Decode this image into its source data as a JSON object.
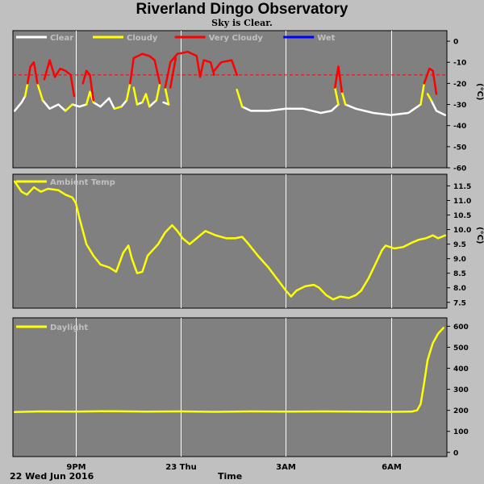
{
  "header": {
    "title": "Riverland Dingo Observatory",
    "subtitle": "Sky is Clear."
  },
  "footer": {
    "date_label": "22 Wed Jun 2016",
    "xlabel": "Time"
  },
  "colors": {
    "plot_bg": "#808080",
    "page_bg": "#c0c0c0",
    "grid": "#ffffff",
    "clear": "#ffffff",
    "cloudy": "#ffff00",
    "very_cloudy": "#ff0000",
    "wet": "#0000ff",
    "threshold": "#ff0000"
  },
  "chart_data": [
    {
      "type": "line",
      "panel": "sky",
      "legend": [
        {
          "name": "Clear",
          "color": "#ffffff"
        },
        {
          "name": "Cloudy",
          "color": "#ffff00"
        },
        {
          "name": "Very Cloudy",
          "color": "#ff0000"
        },
        {
          "name": "Wet",
          "color": "#0000ff"
        }
      ],
      "ylabel": "(°C)",
      "ylim": [
        -60,
        5
      ],
      "yticks": [
        0,
        -10,
        -20,
        -30,
        -40,
        -50,
        -60
      ],
      "threshold": -16,
      "xticks": [
        {
          "label": "9PM",
          "x": 21
        },
        {
          "label": "23 Thu",
          "x": 24
        },
        {
          "label": "3AM",
          "x": 27
        },
        {
          "label": "6AM",
          "x": 30
        }
      ],
      "xlim": [
        19.2,
        31.6
      ],
      "series": [
        {
          "name": "Clear",
          "segments": [
            [
              [
                19.25,
                -33
              ],
              [
                19.45,
                -29
              ],
              [
                19.55,
                -26
              ]
            ],
            [
              [
                20.05,
                -28
              ],
              [
                20.25,
                -32
              ],
              [
                20.5,
                -30
              ],
              [
                20.7,
                -33
              ]
            ],
            [
              [
                20.9,
                -30
              ],
              [
                21.1,
                -31
              ],
              [
                21.3,
                -30
              ]
            ],
            [
              [
                21.5,
                -29
              ],
              [
                21.7,
                -31
              ],
              [
                21.95,
                -27
              ],
              [
                22.1,
                -32
              ]
            ],
            [
              [
                22.3,
                -31
              ],
              [
                22.45,
                -28
              ]
            ],
            [
              [
                22.75,
                -30
              ],
              [
                22.9,
                -29
              ]
            ],
            [
              [
                23.1,
                -31
              ],
              [
                23.3,
                -28
              ]
            ],
            [
              [
                23.5,
                -29
              ],
              [
                23.65,
                -30
              ]
            ],
            [
              [
                25.75,
                -31
              ],
              [
                26,
                -33
              ],
              [
                26.5,
                -33
              ],
              [
                27,
                -32
              ],
              [
                27.5,
                -32
              ],
              [
                28,
                -34
              ],
              [
                28.3,
                -33
              ],
              [
                28.5,
                -30
              ]
            ],
            [
              [
                28.7,
                -30
              ],
              [
                29,
                -32
              ],
              [
                29.5,
                -34
              ],
              [
                30,
                -35
              ],
              [
                30.5,
                -34
              ],
              [
                30.85,
                -30
              ]
            ],
            [
              [
                31.15,
                -28
              ],
              [
                31.3,
                -33
              ],
              [
                31.55,
                -35
              ]
            ]
          ]
        },
        {
          "name": "Cloudy",
          "segments": [
            [
              [
                19.55,
                -26
              ],
              [
                19.62,
                -20
              ]
            ],
            [
              [
                19.9,
                -20
              ],
              [
                20.05,
                -28
              ]
            ],
            [
              [
                20.7,
                -33
              ],
              [
                20.9,
                -30
              ]
            ],
            [
              [
                21.3,
                -30
              ],
              [
                21.4,
                -24
              ],
              [
                21.5,
                -29
              ]
            ],
            [
              [
                22.1,
                -32
              ],
              [
                22.3,
                -31
              ]
            ],
            [
              [
                22.45,
                -28
              ],
              [
                22.55,
                -20
              ]
            ],
            [
              [
                22.65,
                -22
              ],
              [
                22.75,
                -30
              ]
            ],
            [
              [
                22.9,
                -29
              ],
              [
                23.0,
                -25
              ],
              [
                23.1,
                -31
              ]
            ],
            [
              [
                23.3,
                -28
              ],
              [
                23.4,
                -20
              ]
            ],
            [
              [
                23.55,
                -22
              ],
              [
                23.65,
                -30
              ]
            ],
            [
              [
                25.6,
                -23
              ],
              [
                25.75,
                -31
              ]
            ],
            [
              [
                28.4,
                -22
              ],
              [
                28.5,
                -30
              ]
            ],
            [
              [
                28.6,
                -24
              ],
              [
                28.7,
                -30
              ]
            ],
            [
              [
                30.85,
                -30
              ],
              [
                30.95,
                -20
              ]
            ],
            [
              [
                31.05,
                -25
              ],
              [
                31.15,
                -28
              ]
            ]
          ]
        },
        {
          "name": "Very Cloudy",
          "segments": [
            [
              [
                19.62,
                -20
              ],
              [
                19.7,
                -12
              ],
              [
                19.8,
                -10
              ],
              [
                19.9,
                -20
              ]
            ],
            [
              [
                20.1,
                -18
              ],
              [
                20.25,
                -9
              ],
              [
                20.4,
                -17
              ],
              [
                20.55,
                -13
              ],
              [
                20.7,
                -14
              ],
              [
                20.85,
                -16
              ],
              [
                20.95,
                -26
              ]
            ],
            [
              [
                21.2,
                -20
              ],
              [
                21.3,
                -14
              ],
              [
                21.4,
                -16
              ],
              [
                21.5,
                -28
              ]
            ],
            [
              [
                22.55,
                -20
              ],
              [
                22.65,
                -8
              ],
              [
                22.9,
                -6
              ],
              [
                23.1,
                -7
              ],
              [
                23.25,
                -9
              ],
              [
                23.4,
                -20
              ]
            ],
            [
              [
                23.55,
                -22
              ],
              [
                23.7,
                -10
              ],
              [
                23.9,
                -6
              ],
              [
                24.2,
                -5
              ],
              [
                24.45,
                -7
              ],
              [
                24.55,
                -17
              ],
              [
                24.65,
                -9
              ],
              [
                24.85,
                -10
              ],
              [
                24.95,
                -16
              ]
            ],
            [
              [
                23.7,
                -22
              ],
              [
                23.85,
                -8
              ]
            ],
            [
              [
                24.95,
                -14
              ],
              [
                25.15,
                -10
              ],
              [
                25.45,
                -9
              ],
              [
                25.6,
                -16
              ]
            ],
            [
              [
                28.4,
                -22
              ],
              [
                28.5,
                -12
              ],
              [
                28.6,
                -24
              ]
            ],
            [
              [
                30.95,
                -20
              ],
              [
                31.1,
                -13
              ],
              [
                31.2,
                -14
              ],
              [
                31.3,
                -25
              ]
            ]
          ]
        }
      ]
    },
    {
      "type": "line",
      "panel": "ambient",
      "legend": [
        {
          "name": "Ambient Temp",
          "color": "#ffff00"
        }
      ],
      "ylabel": "(°C)",
      "ylim": [
        7.3,
        11.9
      ],
      "yticks": [
        11.5,
        11.0,
        10.5,
        10.0,
        9.5,
        9.0,
        8.5,
        8.0,
        7.5
      ],
      "xticks": [
        {
          "label": "9PM",
          "x": 21
        },
        {
          "label": "23 Thu",
          "x": 24
        },
        {
          "label": "3AM",
          "x": 27
        },
        {
          "label": "6AM",
          "x": 30
        }
      ],
      "xlim": [
        19.2,
        31.6
      ],
      "series": [
        {
          "name": "Ambient Temp",
          "points": [
            [
              19.25,
              11.65
            ],
            [
              19.45,
              11.3
            ],
            [
              19.6,
              11.2
            ],
            [
              19.8,
              11.45
            ],
            [
              20.0,
              11.3
            ],
            [
              20.2,
              11.4
            ],
            [
              20.5,
              11.35
            ],
            [
              20.7,
              11.2
            ],
            [
              20.9,
              11.1
            ],
            [
              21.0,
              10.9
            ],
            [
              21.1,
              10.4
            ],
            [
              21.3,
              9.5
            ],
            [
              21.5,
              9.1
            ],
            [
              21.7,
              8.8
            ],
            [
              21.95,
              8.7
            ],
            [
              22.15,
              8.55
            ],
            [
              22.35,
              9.2
            ],
            [
              22.5,
              9.45
            ],
            [
              22.6,
              9.0
            ],
            [
              22.75,
              8.5
            ],
            [
              22.9,
              8.55
            ],
            [
              23.05,
              9.1
            ],
            [
              23.2,
              9.3
            ],
            [
              23.35,
              9.5
            ],
            [
              23.55,
              9.9
            ],
            [
              23.75,
              10.15
            ],
            [
              23.9,
              9.95
            ],
            [
              24.05,
              9.7
            ],
            [
              24.25,
              9.5
            ],
            [
              24.45,
              9.7
            ],
            [
              24.7,
              9.95
            ],
            [
              25.0,
              9.8
            ],
            [
              25.3,
              9.7
            ],
            [
              25.55,
              9.7
            ],
            [
              25.75,
              9.75
            ],
            [
              25.9,
              9.55
            ],
            [
              26.2,
              9.1
            ],
            [
              26.5,
              8.7
            ],
            [
              26.75,
              8.3
            ],
            [
              27.0,
              7.9
            ],
            [
              27.15,
              7.7
            ],
            [
              27.3,
              7.9
            ],
            [
              27.55,
              8.05
            ],
            [
              27.8,
              8.1
            ],
            [
              27.95,
              8.0
            ],
            [
              28.15,
              7.75
            ],
            [
              28.35,
              7.6
            ],
            [
              28.55,
              7.7
            ],
            [
              28.8,
              7.65
            ],
            [
              29.0,
              7.75
            ],
            [
              29.15,
              7.9
            ],
            [
              29.35,
              8.3
            ],
            [
              29.55,
              8.8
            ],
            [
              29.75,
              9.3
            ],
            [
              29.85,
              9.45
            ],
            [
              30.1,
              9.35
            ],
            [
              30.35,
              9.4
            ],
            [
              30.6,
              9.55
            ],
            [
              30.8,
              9.65
            ],
            [
              31.0,
              9.7
            ],
            [
              31.2,
              9.8
            ],
            [
              31.35,
              9.7
            ],
            [
              31.55,
              9.8
            ]
          ]
        }
      ]
    },
    {
      "type": "line",
      "panel": "daylight",
      "legend": [
        {
          "name": "Daylight",
          "color": "#ffff00"
        }
      ],
      "ylabel": "",
      "ylim": [
        -20,
        640
      ],
      "yticks": [
        600,
        500,
        400,
        300,
        200,
        100,
        0
      ],
      "xticks": [
        {
          "label": "9PM",
          "x": 21
        },
        {
          "label": "23 Thu",
          "x": 24
        },
        {
          "label": "3AM",
          "x": 27
        },
        {
          "label": "6AM",
          "x": 30
        }
      ],
      "xlim": [
        19.2,
        31.6
      ],
      "series": [
        {
          "name": "Daylight",
          "points": [
            [
              19.25,
              192
            ],
            [
              20,
              195
            ],
            [
              21,
              194
            ],
            [
              22,
              196
            ],
            [
              23,
              194
            ],
            [
              24,
              195
            ],
            [
              25,
              193
            ],
            [
              26,
              195
            ],
            [
              27,
              194
            ],
            [
              28,
              195
            ],
            [
              29,
              194
            ],
            [
              30,
              193
            ],
            [
              30.6,
              194
            ],
            [
              30.75,
              200
            ],
            [
              30.85,
              230
            ],
            [
              30.95,
              330
            ],
            [
              31.05,
              440
            ],
            [
              31.2,
              520
            ],
            [
              31.35,
              565
            ],
            [
              31.5,
              592
            ]
          ]
        }
      ]
    }
  ]
}
